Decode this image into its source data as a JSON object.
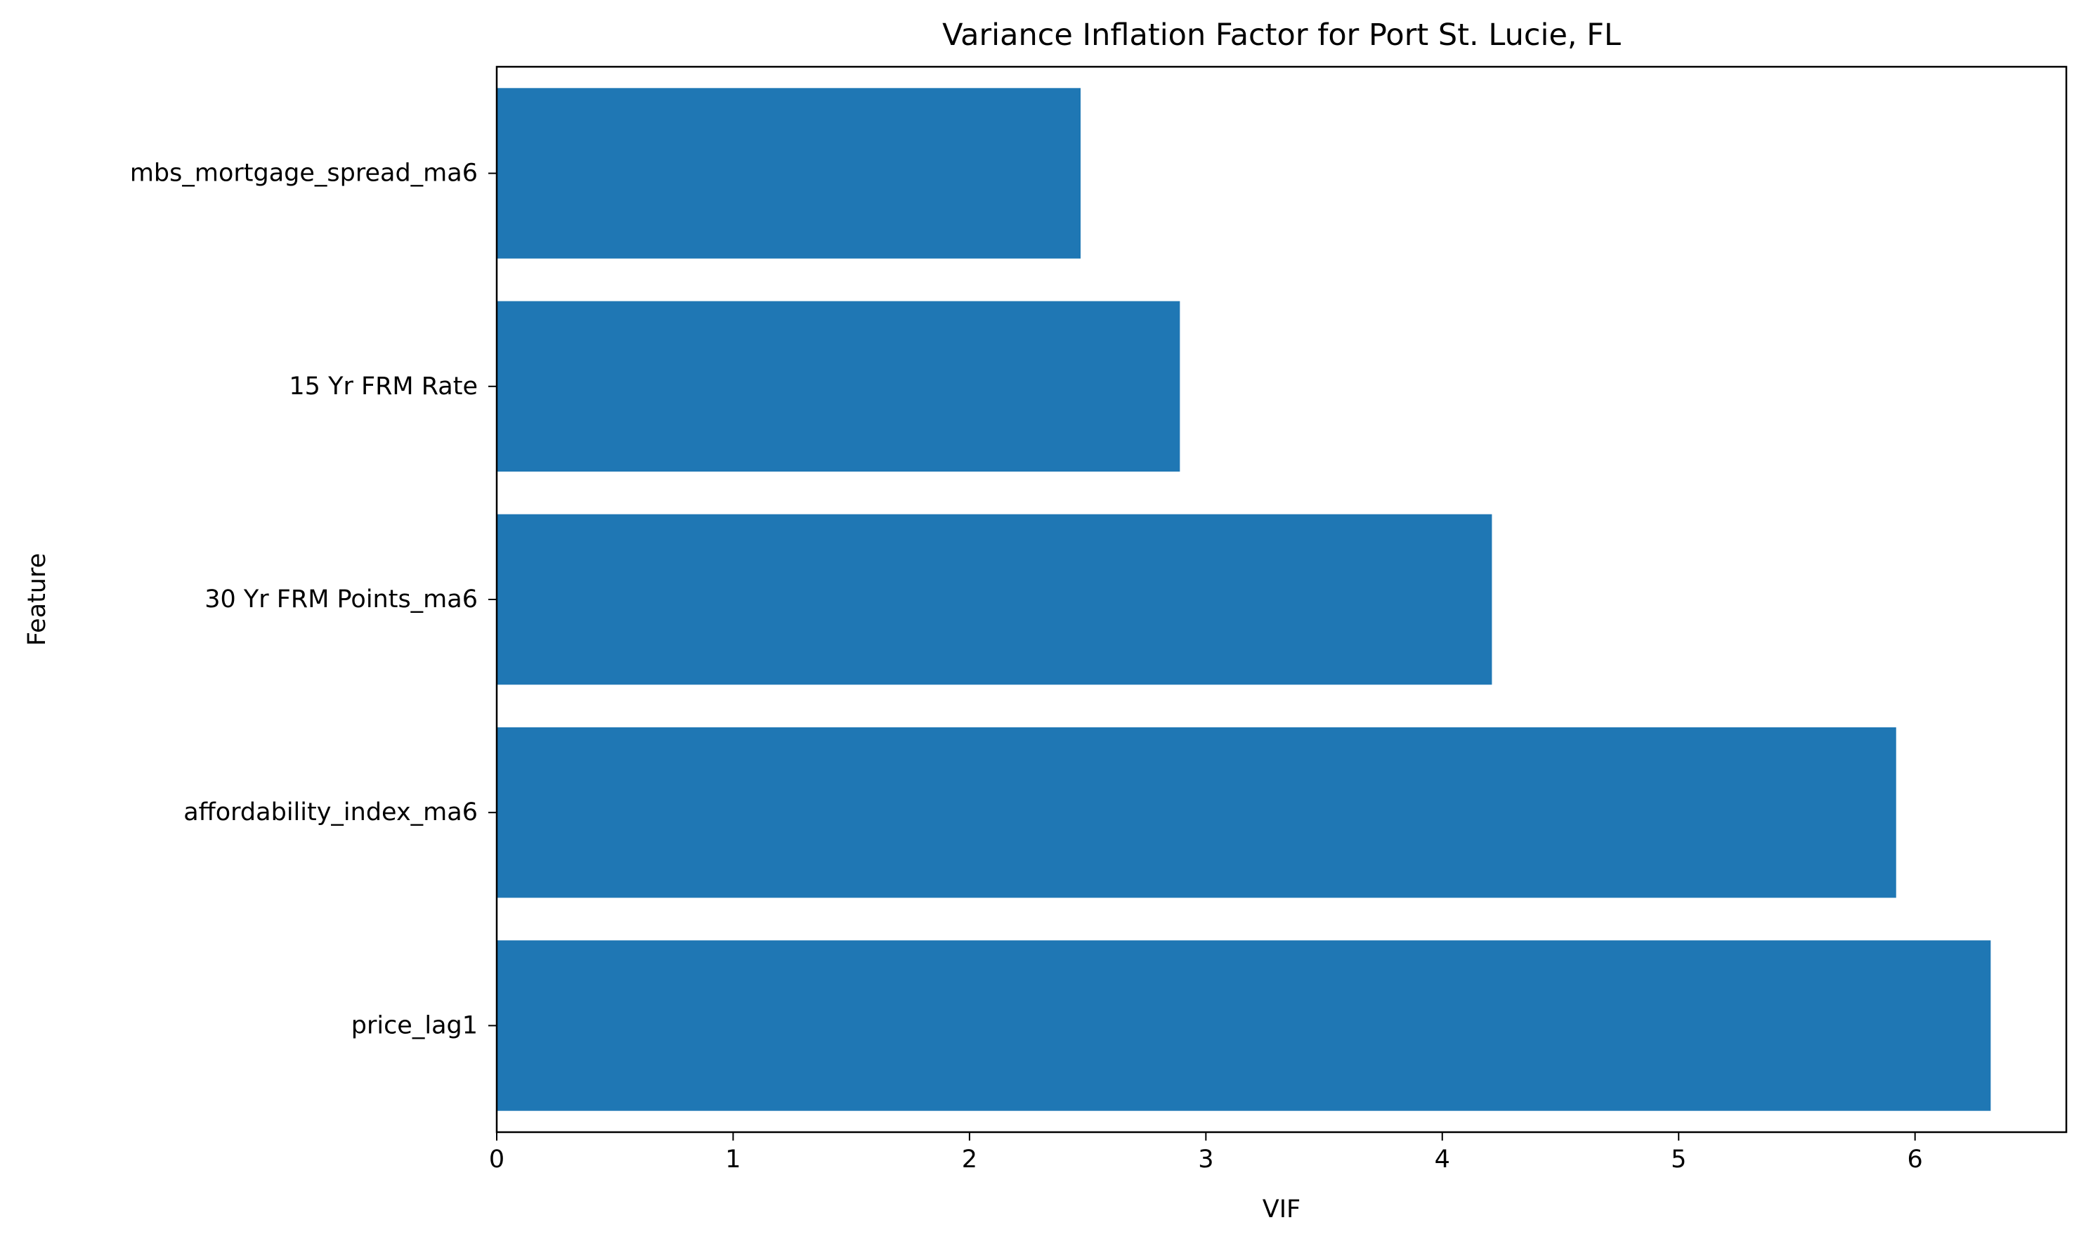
{
  "chart_data": {
    "type": "bar",
    "orientation": "horizontal",
    "title": "Variance Inflation Factor for Port St. Lucie, FL",
    "xlabel": "VIF",
    "ylabel": "Feature",
    "categories": [
      "mbs_mortgage_spread_ma6",
      "15 Yr FRM Rate",
      "30 Yr FRM Points_ma6",
      "affordability_index_ma6",
      "price_lag1"
    ],
    "values": [
      2.47,
      2.89,
      4.21,
      5.92,
      6.32
    ],
    "xlim": [
      0,
      6.64
    ],
    "xticks": [
      0,
      1,
      2,
      3,
      4,
      5,
      6
    ],
    "bar_color": "#1f77b4",
    "grid": false,
    "legend": "none"
  }
}
